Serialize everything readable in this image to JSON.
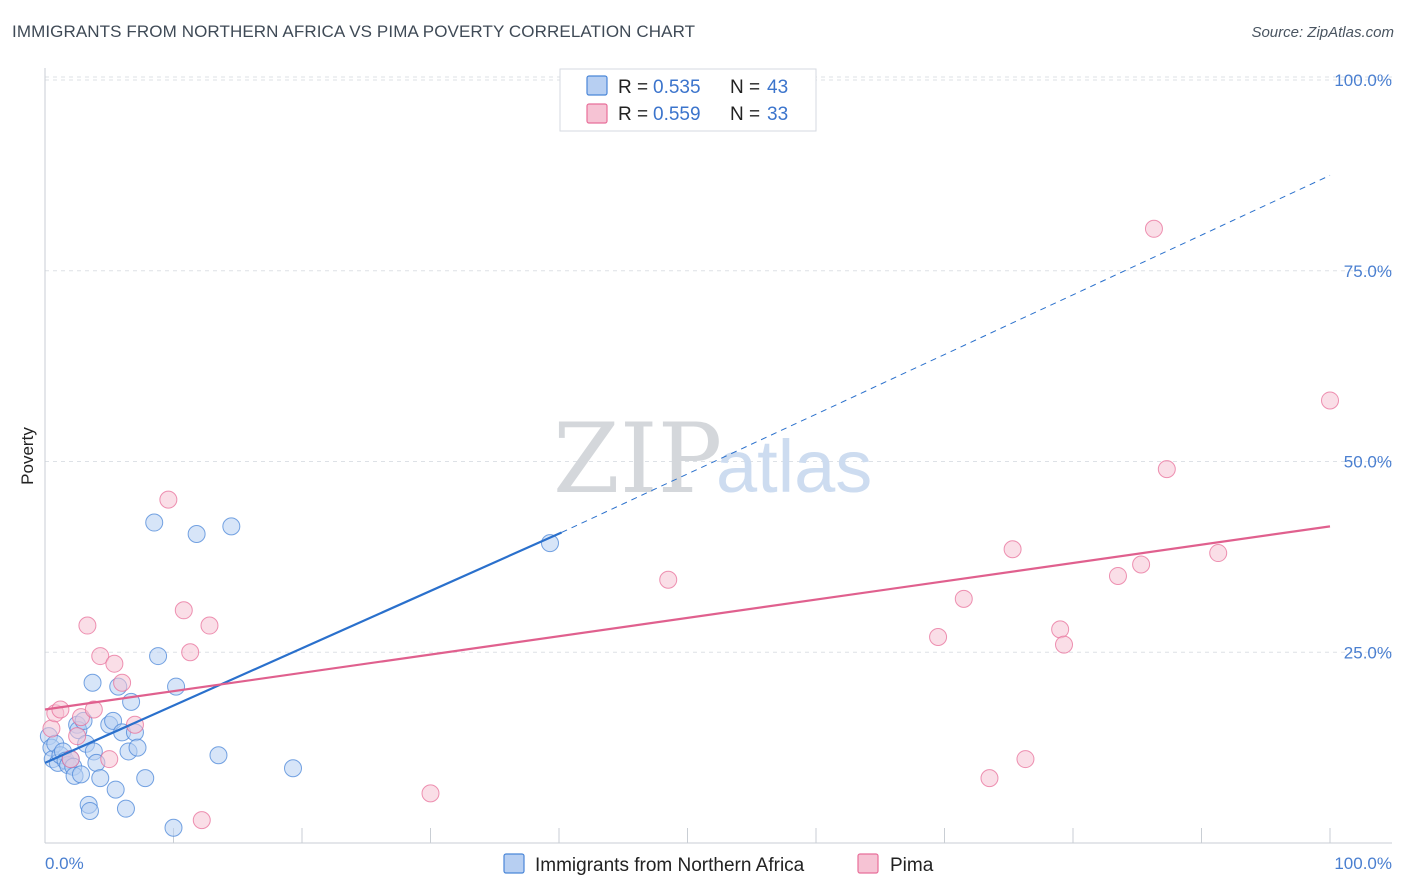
{
  "title": "IMMIGRANTS FROM NORTHERN AFRICA VS PIMA POVERTY CORRELATION CHART",
  "source": "Source: ZipAtlas.com",
  "watermark": {
    "zip": "ZIP",
    "atlas": "atlas"
  },
  "colors": {
    "blue": "#4a86d8",
    "blue_fill": "#b7cff2",
    "blue_line": "#2a70cc",
    "pink": "#e86f9a",
    "pink_fill": "#f6c3d4",
    "pink_line": "#e0608e",
    "grid": "#dde1e6",
    "tick_text": "#4a7fd0"
  },
  "legend": {
    "rows": [
      {
        "r_label": "R = ",
        "r_value": "0.535",
        "n_label": "N = ",
        "n_value": "43",
        "color": "blue"
      },
      {
        "r_label": "R = ",
        "r_value": "0.559",
        "n_label": "N = ",
        "n_value": "33",
        "color": "pink"
      }
    ]
  },
  "bottom_legend": [
    {
      "label": "Immigrants from Northern Africa",
      "color": "blue"
    },
    {
      "label": "Pima",
      "color": "pink"
    }
  ],
  "chart_data": {
    "type": "scatter",
    "xlabel": "",
    "ylabel": "Poverty",
    "xlim": [
      0,
      100
    ],
    "ylim": [
      0,
      100
    ],
    "x_tick_labels": [
      "0.0%",
      "100.0%"
    ],
    "y_ticks": [
      25,
      50,
      75,
      100
    ],
    "y_tick_labels": [
      "25.0%",
      "50.0%",
      "75.0%",
      "100.0%"
    ],
    "grid": true,
    "series": [
      {
        "name": "Immigrants from Northern Africa",
        "color": "blue",
        "points": [
          [
            0.3,
            14.0
          ],
          [
            0.5,
            12.5
          ],
          [
            0.6,
            11.0
          ],
          [
            0.8,
            13.0
          ],
          [
            1.0,
            10.5
          ],
          [
            1.2,
            11.5
          ],
          [
            1.4,
            12.0
          ],
          [
            1.6,
            10.8
          ],
          [
            1.8,
            10.2
          ],
          [
            2.0,
            11.0
          ],
          [
            2.2,
            10.0
          ],
          [
            2.3,
            8.8
          ],
          [
            2.5,
            15.5
          ],
          [
            2.6,
            14.8
          ],
          [
            2.8,
            9.0
          ],
          [
            3.0,
            16.0
          ],
          [
            3.2,
            13.0
          ],
          [
            3.4,
            5.0
          ],
          [
            3.5,
            4.2
          ],
          [
            3.7,
            21.0
          ],
          [
            3.8,
            12.0
          ],
          [
            4.0,
            10.5
          ],
          [
            4.3,
            8.5
          ],
          [
            5.0,
            15.5
          ],
          [
            5.3,
            16.0
          ],
          [
            5.5,
            7.0
          ],
          [
            5.7,
            20.5
          ],
          [
            6.0,
            14.5
          ],
          [
            6.3,
            4.5
          ],
          [
            6.5,
            12.0
          ],
          [
            6.7,
            18.5
          ],
          [
            7.0,
            14.5
          ],
          [
            7.2,
            12.5
          ],
          [
            7.8,
            8.5
          ],
          [
            8.5,
            42.0
          ],
          [
            8.8,
            24.5
          ],
          [
            10.0,
            2.0
          ],
          [
            10.2,
            20.5
          ],
          [
            11.8,
            40.5
          ],
          [
            13.5,
            11.5
          ],
          [
            14.5,
            41.5
          ],
          [
            19.3,
            9.8
          ],
          [
            39.3,
            39.3
          ]
        ],
        "trend": {
          "x": [
            0,
            40.2
          ],
          "y": [
            10.5,
            40.7
          ],
          "extended": {
            "x": [
              40.2,
              100
            ],
            "y": [
              40.7,
              87.5
            ]
          }
        }
      },
      {
        "name": "Pima",
        "color": "pink",
        "points": [
          [
            0.5,
            15.0
          ],
          [
            0.8,
            17.0
          ],
          [
            1.2,
            17.5
          ],
          [
            2.0,
            11.0
          ],
          [
            2.5,
            14.0
          ],
          [
            2.8,
            16.5
          ],
          [
            3.3,
            28.5
          ],
          [
            3.8,
            17.5
          ],
          [
            4.3,
            24.5
          ],
          [
            5.0,
            11.0
          ],
          [
            5.4,
            23.5
          ],
          [
            6.0,
            21.0
          ],
          [
            7.0,
            15.5
          ],
          [
            9.6,
            45.0
          ],
          [
            10.8,
            30.5
          ],
          [
            11.3,
            25.0
          ],
          [
            12.2,
            3.0
          ],
          [
            12.8,
            28.5
          ],
          [
            30.0,
            6.5
          ],
          [
            48.5,
            34.5
          ],
          [
            69.5,
            27.0
          ],
          [
            71.5,
            32.0
          ],
          [
            73.5,
            8.5
          ],
          [
            75.3,
            38.5
          ],
          [
            76.3,
            11.0
          ],
          [
            79.0,
            28.0
          ],
          [
            79.3,
            26.0
          ],
          [
            83.5,
            35.0
          ],
          [
            85.3,
            36.5
          ],
          [
            86.3,
            80.5
          ],
          [
            87.3,
            49.0
          ],
          [
            91.3,
            38.0
          ],
          [
            100.0,
            58.0
          ]
        ],
        "trend": {
          "x": [
            0,
            100
          ],
          "y": [
            17.5,
            41.5
          ]
        }
      }
    ]
  }
}
